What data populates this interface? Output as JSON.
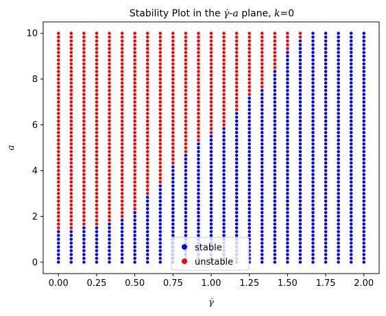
{
  "chart_data": {
    "type": "scatter",
    "title_prefix": "Stability Plot in the ",
    "title_gamma": "γ̇",
    "title_sep": "-",
    "title_a": "a",
    "title_mid": " plane, ",
    "title_k": "k",
    "title_suffix": "=0",
    "xlabel": "γ̇",
    "ylabel": "a",
    "xlim": [
      -0.1,
      2.1
    ],
    "ylim": [
      -0.5,
      10.5
    ],
    "xticks": [
      "0.00",
      "0.25",
      "0.50",
      "0.75",
      "1.00",
      "1.25",
      "1.50",
      "1.75",
      "2.00"
    ],
    "yticks": [
      "0",
      "2",
      "4",
      "6",
      "8",
      "10"
    ],
    "grid": false,
    "legend_placement": "lower center",
    "legend": [
      {
        "label": "stable",
        "color": "#0000ff"
      },
      {
        "label": "unstable",
        "color": "#ff0000"
      }
    ],
    "x": [
      0.0,
      0.0833,
      0.1667,
      0.25,
      0.3333,
      0.4167,
      0.5,
      0.5833,
      0.6667,
      0.75,
      0.8333,
      0.9167,
      1.0,
      1.0833,
      1.1667,
      1.25,
      1.3333,
      1.4167,
      1.5,
      1.5833,
      1.6667,
      1.75,
      1.8333,
      1.9167,
      2.0
    ],
    "y_min": 0,
    "y_max": 10,
    "y_count": 61,
    "stability_threshold_a": [
      1.5,
      1.4,
      1.6,
      1.6,
      1.7,
      1.9,
      2.2,
      2.9,
      3.5,
      4.3,
      4.7,
      5.2,
      5.6,
      6.0,
      6.6,
      7.2,
      7.6,
      8.4,
      9.2,
      9.7,
      10.1,
      10.1,
      10.1,
      10.1,
      10.1
    ],
    "series": [
      {
        "name": "stable",
        "color": "#0000ff",
        "rule": "a < threshold"
      },
      {
        "name": "unstable",
        "color": "#ff0000",
        "rule": "a >= threshold"
      }
    ]
  }
}
